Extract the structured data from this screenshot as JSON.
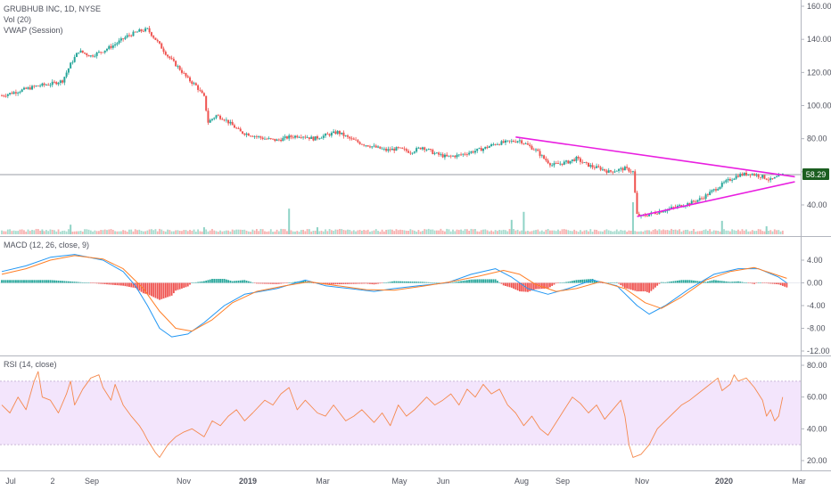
{
  "legend": {
    "symbol": "GRUBHUB INC, 1D, NYSE",
    "volume": "Vol (20)",
    "vwap": "VWAP (Session)",
    "macd": "MACD (12, 26, close, 9)",
    "rsi": "RSI (14, close)"
  },
  "colors": {
    "up": "#26a69a",
    "down": "#ef5350",
    "trendline": "#e91ee0",
    "macd": "#2196f3",
    "signal": "#ff7f27",
    "rsi": "#f5894e",
    "rsi_band": "#f3e5fc",
    "price_label_bg": "#1b5e20"
  },
  "price_axis": {
    "labels": [
      "160.00",
      "140.00",
      "120.00",
      "100.00",
      "80.00",
      "60.00",
      "40.00"
    ],
    "current": "58.29"
  },
  "macd_axis": {
    "labels": [
      "4.00",
      "0.00",
      "-4.00",
      "-8.00",
      "-12.00"
    ]
  },
  "rsi_axis": {
    "labels": [
      "80.00",
      "60.00",
      "40.00",
      "20.00"
    ]
  },
  "time_axis": {
    "labels": [
      {
        "text": "Jul",
        "bold": false
      },
      {
        "text": "2",
        "bold": false
      },
      {
        "text": "Sep",
        "bold": false
      },
      {
        "text": "Nov",
        "bold": false
      },
      {
        "text": "2019",
        "bold": true
      },
      {
        "text": "Mar",
        "bold": false
      },
      {
        "text": "May",
        "bold": false
      },
      {
        "text": "Jun",
        "bold": false
      },
      {
        "text": "Aug",
        "bold": false
      },
      {
        "text": "Sep",
        "bold": false
      },
      {
        "text": "Nov",
        "bold": false
      },
      {
        "text": "2020",
        "bold": true
      },
      {
        "text": "Mar",
        "bold": false
      }
    ]
  },
  "chart_data": {
    "type": "line",
    "title": "GRUBHUB INC, 1D, NYSE",
    "ylim": [
      28,
      162
    ],
    "close_path": [
      [
        0,
        106
      ],
      [
        3,
        108
      ],
      [
        6,
        110
      ],
      [
        9,
        112
      ],
      [
        12,
        113
      ],
      [
        15,
        115
      ],
      [
        17,
        125
      ],
      [
        19,
        133
      ],
      [
        22,
        130
      ],
      [
        25,
        133
      ],
      [
        28,
        137
      ],
      [
        31,
        142
      ],
      [
        34,
        145
      ],
      [
        36,
        146
      ],
      [
        38,
        140
      ],
      [
        41,
        130
      ],
      [
        44,
        122
      ],
      [
        46,
        116
      ],
      [
        48,
        112
      ],
      [
        50,
        105
      ],
      [
        51,
        90
      ],
      [
        53,
        94
      ],
      [
        55,
        92
      ],
      [
        57,
        88
      ],
      [
        59,
        84
      ],
      [
        62,
        82
      ],
      [
        65,
        80
      ],
      [
        68,
        79
      ],
      [
        71,
        81
      ],
      [
        74,
        82
      ],
      [
        77,
        80
      ],
      [
        80,
        82
      ],
      [
        83,
        84
      ],
      [
        86,
        80
      ],
      [
        89,
        77
      ],
      [
        92,
        75
      ],
      [
        95,
        73
      ],
      [
        98,
        74
      ],
      [
        101,
        72
      ],
      [
        104,
        75
      ],
      [
        107,
        71
      ],
      [
        110,
        69
      ],
      [
        113,
        70
      ],
      [
        116,
        72
      ],
      [
        119,
        74
      ],
      [
        122,
        77
      ],
      [
        125,
        78
      ],
      [
        128,
        79
      ],
      [
        130,
        76
      ],
      [
        132,
        73
      ],
      [
        134,
        68
      ],
      [
        136,
        64
      ],
      [
        138,
        65
      ],
      [
        140,
        66
      ],
      [
        142,
        68
      ],
      [
        144,
        65
      ],
      [
        146,
        63
      ],
      [
        148,
        62
      ],
      [
        150,
        60
      ],
      [
        152,
        61
      ],
      [
        154,
        62
      ],
      [
        156,
        60
      ],
      [
        157,
        34
      ],
      [
        158,
        33
      ],
      [
        161,
        35
      ],
      [
        164,
        37
      ],
      [
        167,
        39
      ],
      [
        170,
        41
      ],
      [
        173,
        44
      ],
      [
        176,
        49
      ],
      [
        179,
        54
      ],
      [
        182,
        58
      ],
      [
        185,
        59
      ],
      [
        188,
        57
      ],
      [
        190,
        55
      ],
      [
        192,
        57
      ],
      [
        193,
        58.29
      ]
    ],
    "volume": [
      {
        "i": 10,
        "v": 1.2
      },
      {
        "i": 17,
        "v": 3.0
      },
      {
        "i": 50,
        "v": 2.2
      },
      {
        "i": 71,
        "v": 8.0
      },
      {
        "i": 78,
        "v": 2.2
      },
      {
        "i": 126,
        "v": 4.5
      },
      {
        "i": 129,
        "v": 7.0
      },
      {
        "i": 156,
        "v": 10.0
      },
      {
        "i": 178,
        "v": 4.2
      },
      {
        "i": 189,
        "v": 2.5
      }
    ],
    "trendlines": [
      {
        "from": [
          127,
          81
        ],
        "to": [
          196,
          57
        ]
      },
      {
        "from": [
          157,
          33
        ],
        "to": [
          196,
          54
        ]
      }
    ],
    "macd_ylim": [
      -12.5,
      5.5
    ],
    "macd_path": [
      [
        0,
        2.0
      ],
      [
        6,
        3.0
      ],
      [
        12,
        4.5
      ],
      [
        18,
        5.0
      ],
      [
        25,
        4.0
      ],
      [
        30,
        2.0
      ],
      [
        33,
        -0.5
      ],
      [
        36,
        -4.0
      ],
      [
        39,
        -8.0
      ],
      [
        42,
        -9.5
      ],
      [
        46,
        -9.0
      ],
      [
        50,
        -7.0
      ],
      [
        55,
        -4.0
      ],
      [
        60,
        -2.0
      ],
      [
        68,
        -1.0
      ],
      [
        75,
        0.5
      ],
      [
        80,
        -0.5
      ],
      [
        86,
        -1.0
      ],
      [
        92,
        -1.5
      ],
      [
        97,
        -1.0
      ],
      [
        103,
        -0.5
      ],
      [
        110,
        0.0
      ],
      [
        116,
        1.5
      ],
      [
        122,
        2.5
      ],
      [
        126,
        1.0
      ],
      [
        130,
        -1.0
      ],
      [
        135,
        -2.0
      ],
      [
        140,
        -1.0
      ],
      [
        146,
        0.5
      ],
      [
        152,
        -0.5
      ],
      [
        157,
        -4.0
      ],
      [
        160,
        -5.5
      ],
      [
        164,
        -4.0
      ],
      [
        170,
        -1.0
      ],
      [
        176,
        1.5
      ],
      [
        182,
        2.5
      ],
      [
        187,
        2.5
      ],
      [
        192,
        1.0
      ],
      [
        194,
        0.0
      ]
    ],
    "signal_path": [
      [
        0,
        1.5
      ],
      [
        6,
        2.5
      ],
      [
        12,
        4.0
      ],
      [
        18,
        4.8
      ],
      [
        25,
        4.2
      ],
      [
        30,
        2.5
      ],
      [
        35,
        -1.0
      ],
      [
        39,
        -5.0
      ],
      [
        43,
        -8.0
      ],
      [
        47,
        -8.5
      ],
      [
        52,
        -6.5
      ],
      [
        57,
        -3.5
      ],
      [
        63,
        -1.5
      ],
      [
        70,
        -0.5
      ],
      [
        76,
        0.2
      ],
      [
        83,
        -0.5
      ],
      [
        90,
        -1.2
      ],
      [
        97,
        -1.3
      ],
      [
        104,
        -0.6
      ],
      [
        111,
        0.2
      ],
      [
        118,
        1.2
      ],
      [
        124,
        2.2
      ],
      [
        128,
        1.5
      ],
      [
        132,
        -0.3
      ],
      [
        137,
        -1.5
      ],
      [
        142,
        -1.0
      ],
      [
        148,
        0.2
      ],
      [
        154,
        -1.0
      ],
      [
        159,
        -3.5
      ],
      [
        163,
        -4.5
      ],
      [
        168,
        -2.5
      ],
      [
        174,
        0.5
      ],
      [
        180,
        2.0
      ],
      [
        186,
        2.7
      ],
      [
        191,
        1.5
      ],
      [
        194,
        0.8
      ]
    ],
    "histogram": [
      {
        "i": 5,
        "v": 0.6
      },
      {
        "i": 8,
        "v": 0.9
      },
      {
        "i": 11,
        "v": 0.8
      },
      {
        "i": 16,
        "v": 0.5
      },
      {
        "i": 22,
        "v": -0.4
      },
      {
        "i": 28,
        "v": -1.0
      },
      {
        "i": 33,
        "v": -1.8
      },
      {
        "i": 36,
        "v": -3.5
      },
      {
        "i": 39,
        "v": -2.8
      },
      {
        "i": 42,
        "v": -1.5
      },
      {
        "i": 46,
        "v": -0.6
      },
      {
        "i": 50,
        "v": 0.5
      },
      {
        "i": 54,
        "v": 1.0
      },
      {
        "i": 58,
        "v": 1.2
      },
      {
        "i": 63,
        "v": 0.9
      },
      {
        "i": 68,
        "v": 0.6
      },
      {
        "i": 73,
        "v": 0.4
      },
      {
        "i": 79,
        "v": 0.3
      },
      {
        "i": 85,
        "v": -0.3
      },
      {
        "i": 90,
        "v": -0.5
      },
      {
        "i": 95,
        "v": -0.4
      },
      {
        "i": 100,
        "v": 0.2
      },
      {
        "i": 106,
        "v": 0.5
      },
      {
        "i": 112,
        "v": 0.6
      },
      {
        "i": 117,
        "v": 0.7
      },
      {
        "i": 122,
        "v": 0.5
      },
      {
        "i": 127,
        "v": -0.4
      },
      {
        "i": 131,
        "v": -1.0
      },
      {
        "i": 136,
        "v": -0.8
      },
      {
        "i": 141,
        "v": 0.4
      },
      {
        "i": 146,
        "v": 0.6
      },
      {
        "i": 151,
        "v": -0.3
      },
      {
        "i": 155,
        "v": -1.0
      },
      {
        "i": 158,
        "v": -2.0
      },
      {
        "i": 161,
        "v": -1.2
      },
      {
        "i": 165,
        "v": 0.3
      },
      {
        "i": 170,
        "v": 1.2
      },
      {
        "i": 175,
        "v": 1.3
      },
      {
        "i": 180,
        "v": 0.8
      },
      {
        "i": 185,
        "v": 0.3
      },
      {
        "i": 189,
        "v": -0.6
      },
      {
        "i": 193,
        "v": -0.8
      }
    ],
    "rsi_ylim": [
      15,
      85
    ],
    "rsi_band": [
      30,
      70
    ],
    "rsi_path": [
      [
        0,
        55
      ],
      [
        2,
        50
      ],
      [
        4,
        60
      ],
      [
        6,
        52
      ],
      [
        8,
        70
      ],
      [
        9,
        76
      ],
      [
        10,
        60
      ],
      [
        12,
        58
      ],
      [
        14,
        50
      ],
      [
        16,
        62
      ],
      [
        17,
        70
      ],
      [
        18,
        55
      ],
      [
        20,
        65
      ],
      [
        22,
        72
      ],
      [
        24,
        74
      ],
      [
        25,
        66
      ],
      [
        27,
        58
      ],
      [
        28,
        68
      ],
      [
        30,
        55
      ],
      [
        32,
        48
      ],
      [
        34,
        42
      ],
      [
        35,
        38
      ],
      [
        36,
        33
      ],
      [
        38,
        25
      ],
      [
        39,
        22
      ],
      [
        41,
        30
      ],
      [
        43,
        35
      ],
      [
        45,
        38
      ],
      [
        47,
        40
      ],
      [
        50,
        35
      ],
      [
        52,
        45
      ],
      [
        54,
        42
      ],
      [
        56,
        48
      ],
      [
        58,
        52
      ],
      [
        60,
        45
      ],
      [
        62,
        50
      ],
      [
        65,
        58
      ],
      [
        67,
        55
      ],
      [
        69,
        62
      ],
      [
        71,
        66
      ],
      [
        73,
        52
      ],
      [
        75,
        58
      ],
      [
        78,
        50
      ],
      [
        80,
        48
      ],
      [
        82,
        55
      ],
      [
        85,
        45
      ],
      [
        87,
        48
      ],
      [
        89,
        52
      ],
      [
        92,
        44
      ],
      [
        94,
        50
      ],
      [
        96,
        42
      ],
      [
        98,
        55
      ],
      [
        100,
        48
      ],
      [
        102,
        52
      ],
      [
        105,
        60
      ],
      [
        107,
        55
      ],
      [
        109,
        58
      ],
      [
        111,
        62
      ],
      [
        113,
        55
      ],
      [
        115,
        65
      ],
      [
        117,
        60
      ],
      [
        119,
        68
      ],
      [
        121,
        62
      ],
      [
        123,
        65
      ],
      [
        125,
        55
      ],
      [
        127,
        50
      ],
      [
        129,
        42
      ],
      [
        131,
        48
      ],
      [
        133,
        40
      ],
      [
        135,
        36
      ],
      [
        137,
        44
      ],
      [
        139,
        52
      ],
      [
        141,
        60
      ],
      [
        143,
        56
      ],
      [
        145,
        50
      ],
      [
        147,
        55
      ],
      [
        149,
        46
      ],
      [
        151,
        52
      ],
      [
        153,
        58
      ],
      [
        154,
        48
      ],
      [
        155,
        30
      ],
      [
        156,
        22
      ],
      [
        158,
        24
      ],
      [
        160,
        30
      ],
      [
        162,
        40
      ],
      [
        164,
        45
      ],
      [
        166,
        50
      ],
      [
        168,
        55
      ],
      [
        170,
        58
      ],
      [
        172,
        62
      ],
      [
        174,
        66
      ],
      [
        176,
        70
      ],
      [
        177,
        72
      ],
      [
        178,
        64
      ],
      [
        180,
        68
      ],
      [
        181,
        74
      ],
      [
        182,
        70
      ],
      [
        184,
        72
      ],
      [
        186,
        66
      ],
      [
        188,
        58
      ],
      [
        189,
        48
      ],
      [
        190,
        52
      ],
      [
        191,
        45
      ],
      [
        192,
        48
      ],
      [
        193,
        60
      ]
    ]
  }
}
